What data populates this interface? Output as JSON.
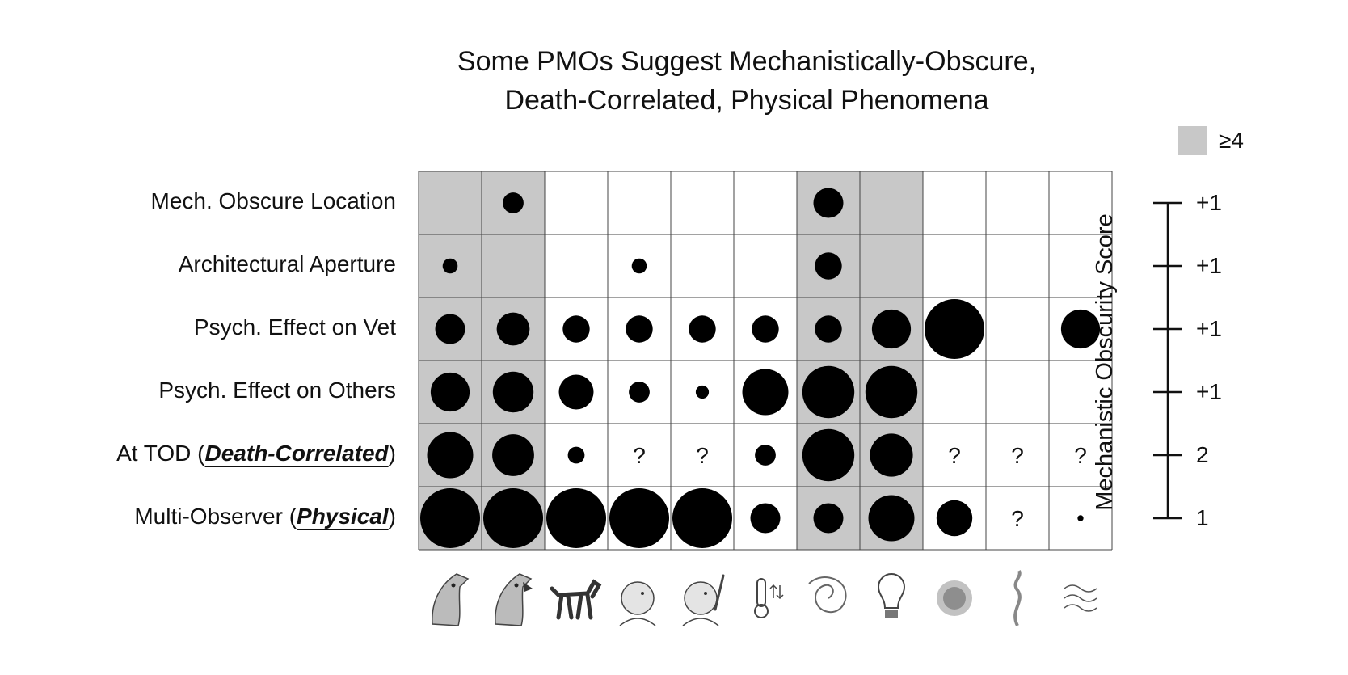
{
  "chart_data": {
    "type": "bubble-matrix",
    "title": [
      "Some PMOs Suggest Mechanistically-Obscure,",
      "Death-Correlated, Physical Phenomena"
    ],
    "legend": {
      "label": "≥4",
      "color": "#c8c8c8"
    },
    "rows": [
      {
        "label": "Mech. Obscure Location",
        "prefix": "Mech. Obscure Location",
        "emph": "",
        "suffix": "",
        "score": "+1"
      },
      {
        "label": "Architectural Aperture",
        "prefix": "Architectural Aperture",
        "emph": "",
        "suffix": "",
        "score": "+1"
      },
      {
        "label": "Psych. Effect on Vet",
        "prefix": "Psych. Effect on Vet",
        "emph": "",
        "suffix": "",
        "score": "+1"
      },
      {
        "label": "Psych. Effect on Others",
        "prefix": "Psych. Effect on Others",
        "emph": "",
        "suffix": "",
        "score": "+1"
      },
      {
        "label": "At TOD (Death-Correlated)",
        "prefix": "At TOD (",
        "emph": "Death-Correlated",
        "suffix": ")",
        "score": "2"
      },
      {
        "label": "Multi-Observer (Physical)",
        "prefix": "Multi-Observer (",
        "emph": "Physical",
        "suffix": ")",
        "score": "1"
      }
    ],
    "columns": [
      "dog-howling-icon",
      "dog-barking-icon",
      "dog-walking-icon",
      "baby-looking-up-icon",
      "baby-pointing-icon",
      "thermometer-icon",
      "swirl-icon",
      "light-bulb-icon",
      "blur-orb-icon",
      "smoke-wisp-icon",
      "wavy-lines-icon"
    ],
    "highlighted_columns": [
      0,
      1,
      6,
      7
    ],
    "values": [
      [
        0,
        0.35,
        0,
        0,
        0,
        0,
        0.5,
        0,
        0,
        0,
        0
      ],
      [
        0.25,
        0,
        0,
        0.25,
        0,
        0,
        0.45,
        0,
        0,
        0,
        0
      ],
      [
        0.5,
        0.55,
        0.45,
        0.45,
        0.45,
        0.45,
        0.45,
        0.65,
        1.0,
        0,
        0.65
      ],
      [
        0.65,
        0.68,
        0.58,
        0.35,
        0.22,
        0.77,
        0.87,
        0.87,
        0,
        0,
        0
      ],
      [
        0.77,
        0.7,
        0.28,
        "?",
        "?",
        0.35,
        0.87,
        0.72,
        "?",
        "?",
        "?"
      ],
      [
        1.0,
        1.0,
        1.0,
        1.0,
        1.0,
        0.5,
        0.5,
        0.77,
        0.6,
        "?",
        0.1
      ]
    ],
    "axis_title": "Mechanistic Obscurity Score"
  }
}
